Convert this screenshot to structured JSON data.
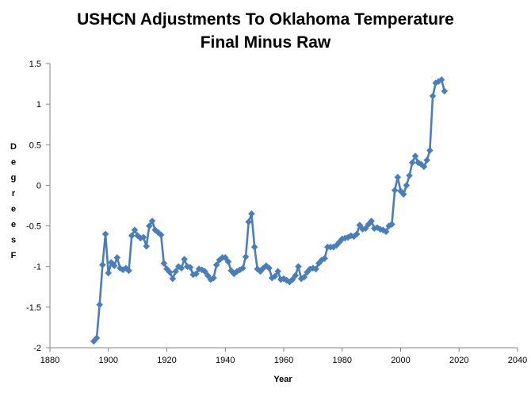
{
  "chart_data": {
    "type": "line",
    "title_lines": [
      "USHCN Adjustments To Oklahoma Temperature",
      "Final Minus Raw"
    ],
    "xlabel": "Year",
    "ylabel": "Degrees F",
    "xlim": [
      1880,
      2040
    ],
    "ylim": [
      -2,
      1.5
    ],
    "x_ticks": [
      1880,
      1900,
      1920,
      1940,
      1960,
      1980,
      2000,
      2020,
      2040
    ],
    "x_tick_labels": [
      "1880",
      "1900",
      "1920",
      "1940",
      "1960",
      "1980",
      "2000",
      "2020",
      "2040"
    ],
    "y_ticks": [
      -2,
      -1.5,
      -1,
      -0.5,
      0,
      0.5,
      1,
      1.5
    ],
    "y_tick_labels": [
      "-2",
      "-1.5",
      "-1",
      "-0.5",
      "0",
      "0.5",
      "1",
      "1.5"
    ],
    "grid": false,
    "line_color": "#4a7ebb",
    "series": [
      {
        "name": "Final Minus Raw",
        "x": [
          1895,
          1896,
          1897,
          1898,
          1899,
          1900,
          1901,
          1902,
          1903,
          1904,
          1905,
          1906,
          1907,
          1908,
          1909,
          1910,
          1911,
          1912,
          1913,
          1914,
          1915,
          1916,
          1917,
          1918,
          1919,
          1920,
          1921,
          1922,
          1923,
          1924,
          1925,
          1926,
          1927,
          1928,
          1929,
          1930,
          1931,
          1932,
          1933,
          1934,
          1935,
          1936,
          1937,
          1938,
          1939,
          1940,
          1941,
          1942,
          1943,
          1944,
          1945,
          1946,
          1947,
          1948,
          1949,
          1950,
          1951,
          1952,
          1953,
          1954,
          1955,
          1956,
          1957,
          1958,
          1959,
          1960,
          1961,
          1962,
          1963,
          1964,
          1965,
          1966,
          1967,
          1968,
          1969,
          1970,
          1971,
          1972,
          1973,
          1974,
          1975,
          1976,
          1977,
          1978,
          1979,
          1980,
          1981,
          1982,
          1983,
          1984,
          1985,
          1986,
          1987,
          1988,
          1989,
          1990,
          1991,
          1992,
          1993,
          1994,
          1995,
          1996,
          1997,
          1998,
          1999,
          2000,
          2001,
          2002,
          2003,
          2004,
          2005,
          2006,
          2007,
          2008,
          2009,
          2010,
          2011,
          2012,
          2013,
          2014,
          2015
        ],
        "y": [
          -1.92,
          -1.88,
          -1.47,
          -0.98,
          -0.6,
          -1.08,
          -0.95,
          -0.99,
          -0.89,
          -1.02,
          -1.04,
          -1.02,
          -1.05,
          -0.62,
          -0.55,
          -0.62,
          -0.65,
          -0.64,
          -0.75,
          -0.5,
          -0.44,
          -0.55,
          -0.58,
          -0.61,
          -0.96,
          -1.03,
          -1.07,
          -1.15,
          -1.06,
          -1.0,
          -1.02,
          -0.91,
          -1.0,
          -1.01,
          -1.1,
          -1.09,
          -1.03,
          -1.04,
          -1.06,
          -1.11,
          -1.16,
          -1.14,
          -0.98,
          -0.92,
          -0.89,
          -0.89,
          -0.94,
          -1.05,
          -1.09,
          -1.06,
          -1.04,
          -1.02,
          -0.88,
          -0.45,
          -0.35,
          -0.76,
          -1.03,
          -1.06,
          -1.02,
          -0.99,
          -1.02,
          -1.14,
          -1.12,
          -1.06,
          -1.16,
          -1.15,
          -1.17,
          -1.19,
          -1.16,
          -1.11,
          -1.0,
          -1.15,
          -1.13,
          -1.07,
          -1.03,
          -1.02,
          -1.03,
          -0.96,
          -0.92,
          -0.9,
          -0.76,
          -0.76,
          -0.76,
          -0.74,
          -0.7,
          -0.66,
          -0.65,
          -0.64,
          -0.62,
          -0.63,
          -0.6,
          -0.49,
          -0.54,
          -0.53,
          -0.48,
          -0.44,
          -0.53,
          -0.52,
          -0.54,
          -0.55,
          -0.57,
          -0.5,
          -0.48,
          -0.06,
          0.1,
          -0.07,
          -0.11,
          0.0,
          0.12,
          0.28,
          0.36,
          0.28,
          0.26,
          0.23,
          0.31,
          0.43,
          1.1,
          1.26,
          1.28,
          1.3,
          1.16
        ]
      }
    ]
  }
}
